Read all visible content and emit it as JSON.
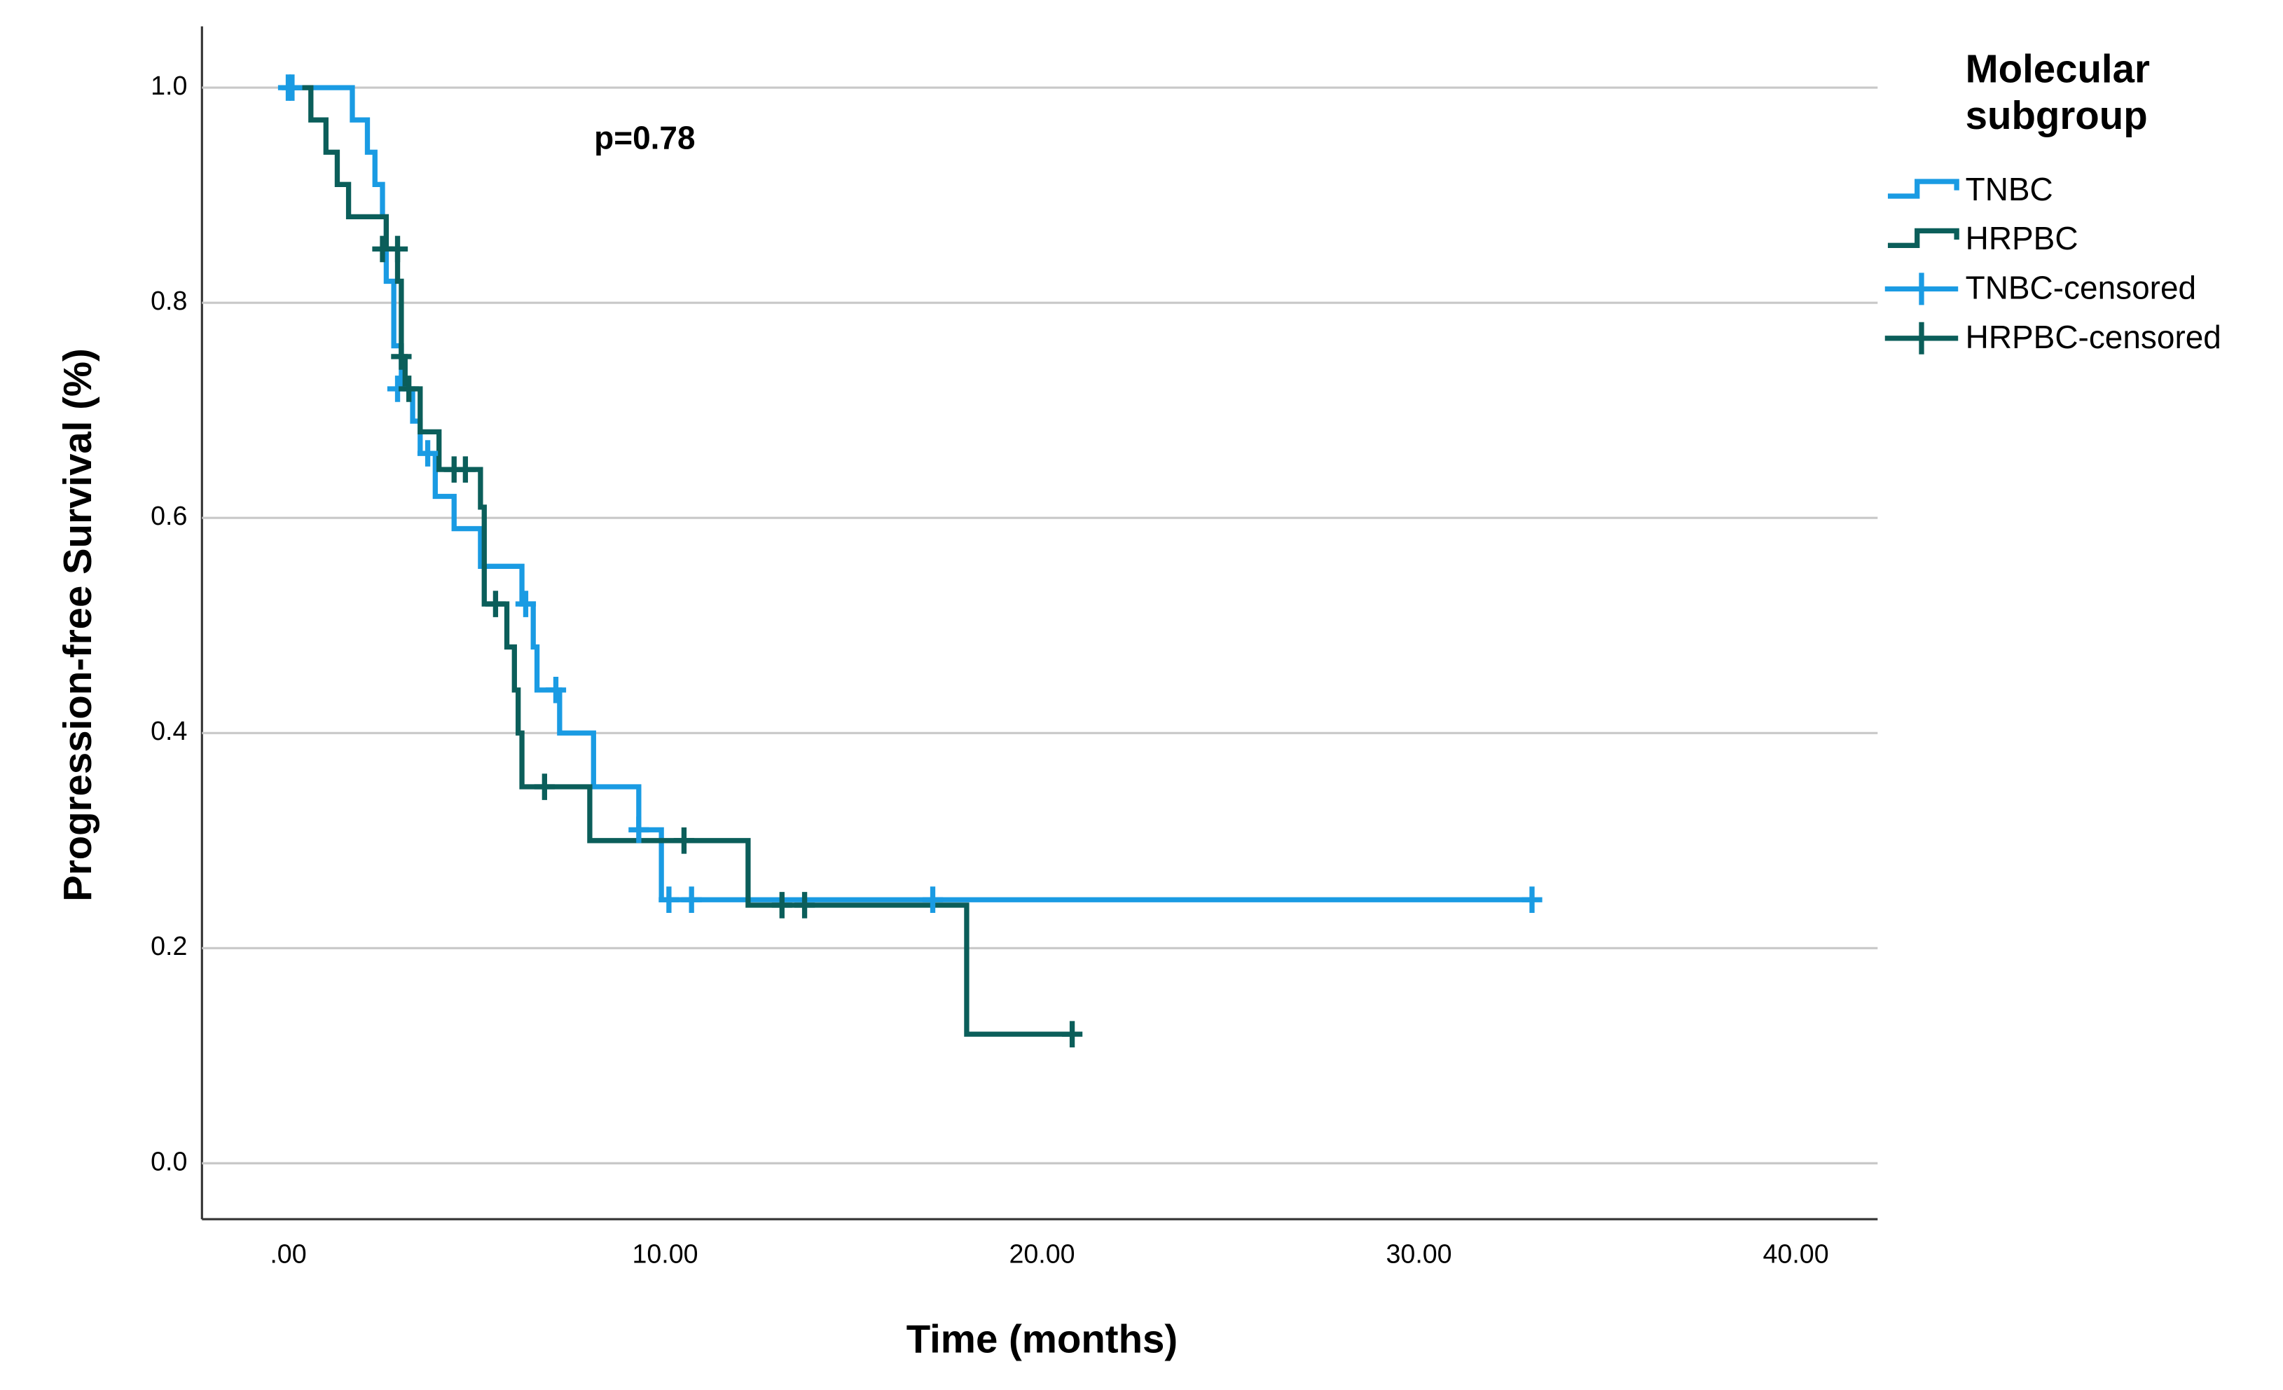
{
  "chart_data": {
    "type": "kaplan-meier",
    "xlabel": "Time (months)",
    "ylabel": "Progression-free Survival (%)",
    "annotation": "p=0.78",
    "legend_title": [
      "Molecular",
      "subgroup"
    ],
    "xlim": [
      -2.29,
      42.17
    ],
    "ylim": [
      -0.052,
      1.057
    ],
    "xticks": [
      {
        "value": 0,
        "label": ".00"
      },
      {
        "value": 10,
        "label": "10.00"
      },
      {
        "value": 20,
        "label": "20.00"
      },
      {
        "value": 30,
        "label": "30.00"
      },
      {
        "value": 40,
        "label": "40.00"
      }
    ],
    "yticks": [
      {
        "value": 0,
        "label": "0.0"
      },
      {
        "value": 0.2,
        "label": "0.2"
      },
      {
        "value": 0.4,
        "label": "0.4"
      },
      {
        "value": 0.6,
        "label": "0.6"
      },
      {
        "value": 0.8,
        "label": "0.8"
      },
      {
        "value": 1,
        "label": "1.0"
      }
    ],
    "grid": true,
    "series": [
      {
        "name": "TNBC",
        "color": "#1a9be3",
        "kind": "step",
        "x": [
          0,
          1.7,
          2.1,
          2.3,
          2.5,
          2.6,
          2.8,
          3.0,
          3.3,
          3.5,
          3.9,
          4.4,
          5.1,
          6.2,
          6.5,
          6.6,
          7.2,
          8.1,
          9.3,
          9.9,
          33.0
        ],
        "values": [
          1.0,
          0.97,
          0.94,
          0.91,
          0.88,
          0.82,
          0.76,
          0.72,
          0.69,
          0.66,
          0.62,
          0.59,
          0.555,
          0.52,
          0.48,
          0.44,
          0.4,
          0.35,
          0.31,
          0.245,
          0.245
        ]
      },
      {
        "name": "HRPBC",
        "color": "#0b5e5a",
        "kind": "step",
        "x": [
          0,
          0.6,
          1.0,
          1.3,
          1.6,
          2.6,
          2.9,
          3.0,
          3.1,
          3.5,
          4.0,
          5.1,
          5.2,
          5.8,
          6.0,
          6.1,
          6.2,
          8.0,
          12.2,
          18.0,
          20.8
        ],
        "values": [
          1.0,
          0.97,
          0.94,
          0.91,
          0.88,
          0.85,
          0.82,
          0.75,
          0.72,
          0.68,
          0.645,
          0.61,
          0.52,
          0.48,
          0.44,
          0.4,
          0.35,
          0.3,
          0.24,
          0.12,
          0.12
        ]
      },
      {
        "name": "TNBC-censored",
        "color": "#1a9be3",
        "kind": "censored",
        "x": [
          0,
          0.1,
          2.9,
          3.7,
          6.3,
          7.1,
          9.3,
          10.1,
          10.7,
          17.1,
          33.0
        ],
        "values": [
          1.0,
          1.0,
          0.72,
          0.66,
          0.52,
          0.44,
          0.31,
          0.245,
          0.245,
          0.245,
          0.245
        ]
      },
      {
        "name": "HRPBC-censored",
        "color": "#0b5e5a",
        "kind": "censored",
        "x": [
          2.5,
          2.9,
          3.0,
          3.2,
          4.4,
          4.7,
          5.5,
          6.8,
          10.5,
          13.1,
          13.7,
          20.8
        ],
        "values": [
          0.85,
          0.85,
          0.75,
          0.72,
          0.645,
          0.645,
          0.52,
          0.35,
          0.3,
          0.24,
          0.24,
          0.12
        ]
      }
    ]
  }
}
